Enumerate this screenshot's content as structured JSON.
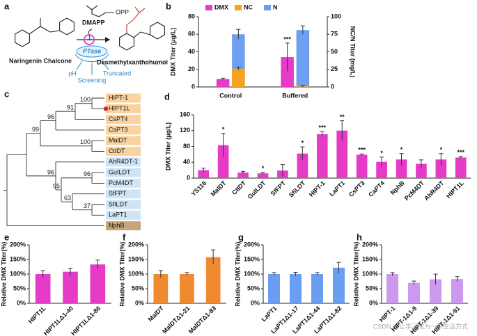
{
  "scheme": {
    "panel": "a",
    "substrate": "Naringenin Chalcone",
    "donor": "DMAPP",
    "donor_group": "OPP",
    "enzyme": "PTase",
    "product": "Desmethylxanthohumol",
    "strategies": [
      "pH",
      "Screening",
      "Truncated"
    ]
  },
  "tree": {
    "panel": "c",
    "leaves": [
      "HIPT-1",
      "HIPT1L",
      "CsPT4",
      "CsPT3",
      "MalDT",
      "CtIDT",
      "AhR4DT-1",
      "GuILDT",
      "PcM4DT",
      "SfFPT",
      "SfiLDT",
      "LaPT1",
      "NphB"
    ],
    "leaf_colors": [
      "#f9d3a0",
      "#f9d3a0",
      "#f9d3a0",
      "#f9d3a0",
      "#f9d3a0",
      "#f9d3a0",
      "#cfe5f5",
      "#cfe5f5",
      "#cfe5f5",
      "#cfe5f5",
      "#cfe5f5",
      "#cfe5f5",
      "#c9a37a"
    ],
    "support": [
      100,
      91,
      96,
      99,
      100,
      96,
      96,
      95,
      63,
      37
    ]
  },
  "chart_data": [
    {
      "panel": "b",
      "type": "bar",
      "categories": [
        "Control",
        "Buffered"
      ],
      "ylabel": "DMX Titer (μg/L)",
      "y2label": "NC/N Titer (mg/L)",
      "ylim": [
        0,
        80
      ],
      "yticks": [
        0,
        20,
        40,
        60,
        80
      ],
      "y2lim": [
        0,
        100
      ],
      "y2ticks": [
        0,
        25,
        50,
        75,
        100
      ],
      "series": [
        {
          "name": "DMX",
          "color": "#e53bc6",
          "values": [
            9,
            34
          ],
          "errors": [
            1,
            16
          ],
          "annotations": [
            null,
            "***"
          ]
        },
        {
          "name": "NC",
          "color": "#f7a21b",
          "axis": "y2",
          "values": [
            26,
            1
          ],
          "errors": [
            2,
            1
          ]
        },
        {
          "name": "N",
          "color": "#6e9ff0",
          "axis": "y2",
          "values": [
            75,
            81
          ],
          "errors": [
            7,
            6
          ]
        }
      ]
    },
    {
      "panel": "d",
      "type": "bar",
      "categories": [
        "YS116",
        "MalDT",
        "CtIDT",
        "GuILDT",
        "SfFPT",
        "SfiLDT",
        "HIPT-1",
        "LaPT1",
        "CsPT3",
        "CaPT4",
        "NphB",
        "PcM4DT",
        "AhR4DT",
        "HIPT1L"
      ],
      "values": [
        20,
        83,
        14,
        12,
        19,
        62,
        111,
        120,
        59,
        41,
        47,
        36,
        47,
        52
      ],
      "errors": [
        5,
        30,
        3,
        3,
        15,
        17,
        7,
        25,
        2,
        12,
        15,
        10,
        15,
        3
      ],
      "annotations": [
        null,
        "*",
        null,
        "*",
        null,
        "*",
        "***",
        "**",
        "***",
        "*",
        "*",
        null,
        "*",
        "***"
      ],
      "color": "#e53bc6",
      "ylabel": "DMX Titer (μg/L)",
      "ylim": [
        0,
        160
      ],
      "yticks": [
        0,
        40,
        80,
        120,
        160
      ]
    },
    {
      "panel": "e",
      "type": "bar",
      "categories": [
        "HIPT1L",
        "HIPT1LΔ1-40",
        "HIPT1LΔ1-86"
      ],
      "values": [
        100,
        108,
        133
      ],
      "errors": [
        12,
        12,
        15
      ],
      "color": "#e53bc6",
      "ylabel": "Relative DMX Titer(%)",
      "ylim": [
        0,
        200
      ],
      "yticks": [
        {
          "value": 0,
          "label": "0%"
        },
        {
          "value": 50,
          "label": "50%"
        },
        {
          "value": 100,
          "label": "100%"
        },
        {
          "value": 150,
          "label": "150%"
        },
        {
          "value": 200,
          "label": "200%"
        }
      ]
    },
    {
      "panel": "f",
      "type": "bar",
      "categories": [
        "MalDT",
        "MalDTΔ1-21",
        "MalDTΔ1-83"
      ],
      "values": [
        100,
        100,
        158
      ],
      "errors": [
        12,
        5,
        25
      ],
      "color": "#f08a30",
      "ylabel": "Relative DMX Titer(%)",
      "ylim": [
        0,
        200
      ],
      "yticks": [
        {
          "value": 0,
          "label": "0%"
        },
        {
          "value": 50,
          "label": "50%"
        },
        {
          "value": 100,
          "label": "100%"
        },
        {
          "value": 150,
          "label": "150%"
        },
        {
          "value": 200,
          "label": "200%"
        }
      ]
    },
    {
      "panel": "g",
      "type": "bar",
      "categories": [
        "LaPT1",
        "LaPT1Δ1-17",
        "LaPT1Δ1-44",
        "LaPT1Δ1-82"
      ],
      "values": [
        100,
        100,
        100,
        122
      ],
      "errors": [
        5,
        6,
        5,
        18
      ],
      "color": "#6a9ef0",
      "ylabel": "Relative DMX Titer(%)",
      "ylim": [
        0,
        200
      ],
      "yticks": [
        {
          "value": 0,
          "label": "0%"
        },
        {
          "value": 50,
          "label": "50%"
        },
        {
          "value": 100,
          "label": "100%"
        },
        {
          "value": 150,
          "label": "150%"
        },
        {
          "value": 200,
          "label": "200%"
        }
      ]
    },
    {
      "panel": "h",
      "type": "bar",
      "categories": [
        "HIPT-1",
        "HIPT-1Δ1-9",
        "HIPT-1Δ1-39",
        "HIPT-1Δ1-91"
      ],
      "values": [
        100,
        70,
        82,
        83
      ],
      "errors": [
        5,
        6,
        18,
        8
      ],
      "color": "#cc99ee",
      "ylabel": "Relative DMX Titer(%)",
      "ylim": [
        0,
        200
      ],
      "yticks": [
        {
          "value": 0,
          "label": "0%"
        },
        {
          "value": 50,
          "label": "50%"
        },
        {
          "value": 100,
          "label": "100%"
        },
        {
          "value": 150,
          "label": "150%"
        },
        {
          "value": 200,
          "label": "200%"
        }
      ]
    }
  ],
  "watermark": "CSDN @让学习成为一种生活方式"
}
